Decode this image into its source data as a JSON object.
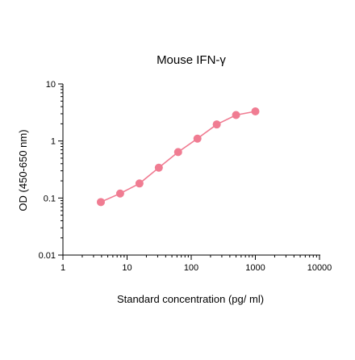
{
  "chart_data": {
    "type": "scatter",
    "title": "Mouse IFN-γ",
    "xlabel": "Standard concentration (pg/ ml)",
    "ylabel": "OD (450-650 nm)",
    "xscale": "log",
    "yscale": "log",
    "xlim": [
      1,
      10000
    ],
    "ylim": [
      0.01,
      10
    ],
    "x_ticks": [
      1,
      10,
      100,
      1000,
      10000
    ],
    "x_tick_labels": [
      "1",
      "10",
      "100",
      "1000",
      "10000"
    ],
    "y_ticks": [
      0.01,
      0.1,
      1,
      10
    ],
    "y_tick_labels": [
      "0.01",
      "0.1",
      "1",
      "10"
    ],
    "grid": false,
    "legend": "none",
    "series": [
      {
        "x": [
          3.9,
          7.8,
          15.6,
          31.25,
          62.5,
          125,
          250,
          500,
          1000
        ],
        "y": [
          0.085,
          0.12,
          0.18,
          0.34,
          0.64,
          1.1,
          1.95,
          2.85,
          3.3
        ],
        "color": "#f07c92",
        "markers": true,
        "line": true
      }
    ]
  }
}
